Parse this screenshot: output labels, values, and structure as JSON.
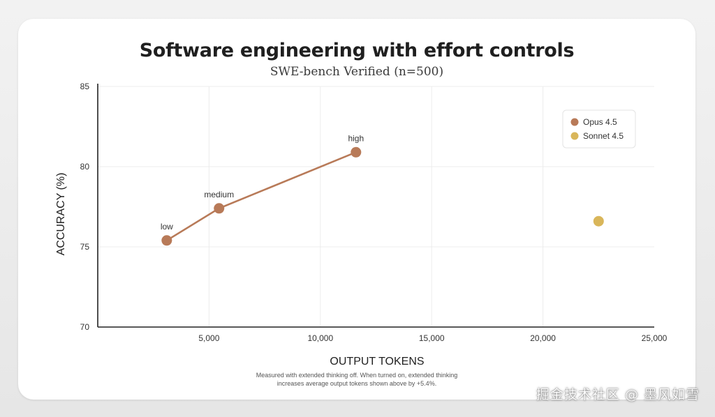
{
  "chart_data": {
    "type": "scatter",
    "title": "Software engineering with effort controls",
    "subtitle": "SWE-bench Verified (n=500)",
    "xlabel": "OUTPUT TOKENS",
    "ylabel": "ACCURACY (%)",
    "xlim": [
      0,
      25000
    ],
    "ylim": [
      70,
      85
    ],
    "xticks": [
      5000,
      10000,
      15000,
      20000,
      25000
    ],
    "xtick_labels": [
      "5,000",
      "10,000",
      "15,000",
      "20,000",
      "25,000"
    ],
    "yticks": [
      70,
      75,
      80,
      85
    ],
    "ytick_labels": [
      "70",
      "75",
      "80",
      "85"
    ],
    "grid": true,
    "legend_position": "top-right",
    "series": [
      {
        "name": "Opus 4.5",
        "color": "#b87a58",
        "connected": true,
        "points": [
          {
            "x": 3100,
            "y": 75.4,
            "label": "low"
          },
          {
            "x": 5450,
            "y": 77.4,
            "label": "medium"
          },
          {
            "x": 11600,
            "y": 80.9,
            "label": "high"
          }
        ]
      },
      {
        "name": "Sonnet 4.5",
        "color": "#d9b65a",
        "connected": false,
        "points": [
          {
            "x": 22500,
            "y": 76.6,
            "label": ""
          }
        ]
      }
    ],
    "footnote_lines": [
      "Measured with extended thinking off. When turned on, extended thinking",
      "increases average output tokens shown above by +5.4%."
    ]
  },
  "watermark": "掘金技术社区 @ 墨风如雪"
}
